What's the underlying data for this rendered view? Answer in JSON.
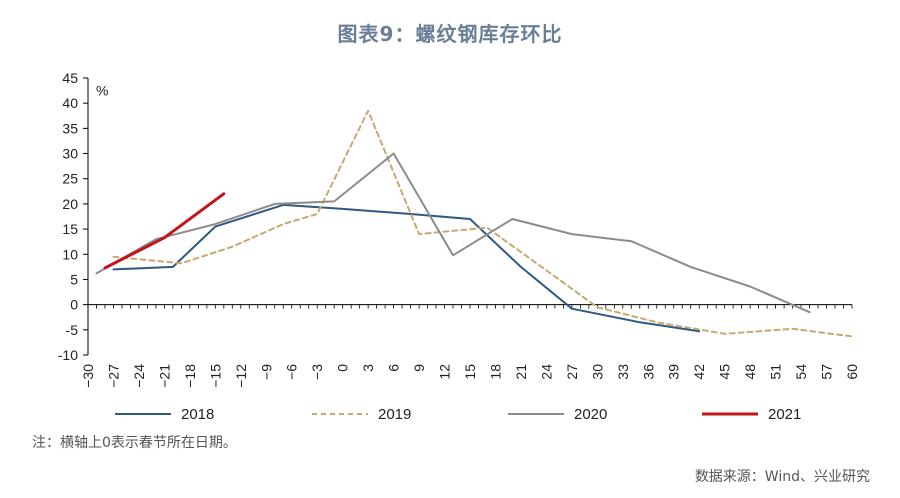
{
  "chart_data": {
    "type": "line",
    "title": "图表9：螺纹钢库存环比",
    "ylabel": "%",
    "ylim": [
      -10,
      45
    ],
    "yticks": [
      -10,
      -5,
      0,
      5,
      10,
      15,
      20,
      25,
      30,
      35,
      40,
      45
    ],
    "xlim": [
      -30,
      60
    ],
    "xticks": [
      -30,
      -27,
      -24,
      -21,
      -18,
      -15,
      -12,
      -9,
      -6,
      -3,
      0,
      3,
      6,
      9,
      12,
      15,
      18,
      21,
      24,
      27,
      30,
      33,
      36,
      39,
      42,
      45,
      48,
      51,
      54,
      57,
      60
    ],
    "series": [
      {
        "name": "2018",
        "color": "#2e5a82",
        "style": "solid",
        "width": 2,
        "x": [
          -27,
          -20,
          -15,
          -7,
          0,
          8,
          15,
          21,
          27,
          35,
          42
        ],
        "y": [
          7,
          7.5,
          15.5,
          19.8,
          19,
          18,
          17,
          7.5,
          -0.8,
          -3.5,
          -5.3
        ]
      },
      {
        "name": "2019",
        "color": "#c8a872",
        "style": "dashed",
        "width": 2,
        "x": [
          -27,
          -19,
          -13,
          -7,
          -3,
          3,
          9,
          17,
          23,
          30,
          37,
          45,
          53,
          60
        ],
        "y": [
          9.5,
          8.2,
          11.5,
          16,
          18,
          38.5,
          14,
          15.3,
          8,
          -0.5,
          -3.5,
          -5.8,
          -4.8,
          -6.3
        ]
      },
      {
        "name": "2020",
        "color": "#8c8c8c",
        "style": "solid",
        "width": 2,
        "x": [
          -29,
          -22,
          -15,
          -8,
          -1,
          6,
          13,
          20,
          27,
          34,
          41,
          48,
          55
        ],
        "y": [
          6.2,
          13,
          16,
          20,
          20.5,
          30,
          9.8,
          17,
          14,
          12.6,
          7.5,
          3.6,
          -1.5
        ]
      },
      {
        "name": "2021",
        "color": "#c0161b",
        "style": "solid",
        "width": 3,
        "x": [
          -28,
          -21,
          -14
        ],
        "y": [
          7.3,
          13.3,
          22
        ]
      }
    ],
    "legend_position": "bottom"
  },
  "note": "注：横轴上0表示春节所在日期。",
  "source": "数据来源：Wind、兴业研究"
}
